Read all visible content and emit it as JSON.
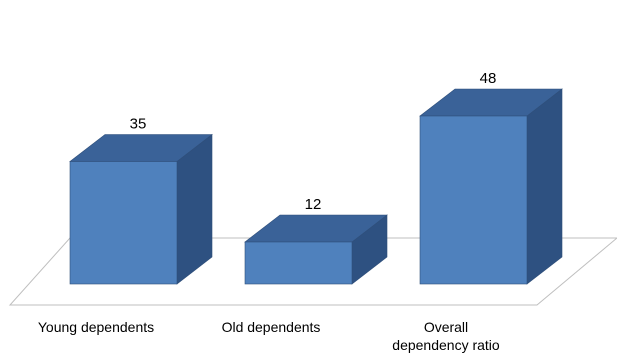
{
  "chart_data": {
    "type": "bar",
    "style": "3d-column",
    "categories": [
      "Young dependents",
      "Old dependents",
      "Overall dependency ratio"
    ],
    "category_lines": [
      [
        "Young dependents"
      ],
      [
        "Old dependents"
      ],
      [
        "Overall",
        "dependency ratio"
      ]
    ],
    "values": [
      35,
      12,
      48
    ],
    "data_labels": [
      "35",
      "12",
      "48"
    ],
    "title": "",
    "xlabel": "",
    "ylabel": "",
    "ylim": [
      0,
      48
    ],
    "grid": false,
    "legend": "none",
    "colors": {
      "front": "#4F81BD",
      "top": "#3A6298",
      "side": "#2E5181",
      "edge": "#2F4F7A",
      "floor": "#BFBFBF",
      "text": "#000000"
    }
  }
}
